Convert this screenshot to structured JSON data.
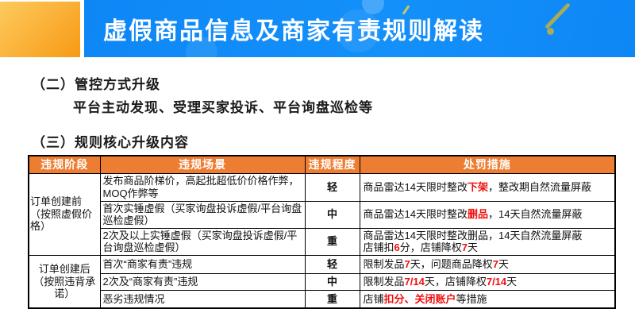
{
  "colors": {
    "banner_blue": "#0d87f5",
    "accent_orange_light": "#fdca5e",
    "accent_orange_dark": "#f79a14",
    "table_header_bg": "#ed7d31",
    "highlight_red": "#f10e0e"
  },
  "header": {
    "title": "虚假商品信息及商家有责规则解读"
  },
  "sections": {
    "s2_heading": "（二）管控方式升级",
    "s2_body": "平台主动发现、受理买家投诉、平台询盘巡检等",
    "s3_heading": "（三）规则核心升级内容"
  },
  "table": {
    "columns": [
      "违规阶段",
      "违规场景",
      "违规程度",
      "处罚措施"
    ],
    "groups": [
      {
        "stage_lines": [
          "订单创建前",
          "（按照虚假价",
          "格）"
        ],
        "rows": [
          {
            "scenario": "发布商品阶梯价，高起批超低价价格作弊，MOQ作弊等",
            "degree": "轻",
            "punishment": [
              {
                "t": "商品雷达14天限时整改"
              },
              {
                "t": "下架",
                "red": true
              },
              {
                "t": "，整改期自然流量屏蔽"
              }
            ]
          },
          {
            "scenario": "首次实锤虚假（买家询盘投诉虚假/平台询盘巡检虚假）",
            "degree": "中",
            "punishment": [
              {
                "t": "商品雷达14天限时整改"
              },
              {
                "t": "删品",
                "red": true
              },
              {
                "t": "，14天自然流量屏蔽"
              }
            ]
          },
          {
            "scenario": "2次及以上实锤虚假（买家询盘投诉虚假/平台询盘巡检虚假）",
            "degree": "重",
            "punishment": [
              {
                "t": "商品雷达14天限时整改删品，14天自然流量屏蔽"
              },
              {
                "br": true
              },
              {
                "t": "店铺扣"
              },
              {
                "t": "6",
                "red": true
              },
              {
                "t": "分，店铺降权"
              },
              {
                "t": "7",
                "red": true
              },
              {
                "t": "天"
              }
            ]
          }
        ]
      },
      {
        "stage_lines": [
          "订单创建后",
          "（按照违背承",
          "诺）"
        ],
        "rows": [
          {
            "scenario": "首次“商家有责”违规",
            "degree": "轻",
            "punishment": [
              {
                "t": "限制发品"
              },
              {
                "t": "7",
                "red": true
              },
              {
                "t": "天，问题商品降权"
              },
              {
                "t": "7",
                "red": true
              },
              {
                "t": "天"
              }
            ]
          },
          {
            "scenario": "2次及“商家有责”违规",
            "degree": "中",
            "punishment": [
              {
                "t": "限制发品"
              },
              {
                "t": "7/14",
                "red": true
              },
              {
                "t": "天，店铺降权"
              },
              {
                "t": "7/14",
                "red": true
              },
              {
                "t": "天"
              }
            ]
          },
          {
            "scenario": "恶劣违规情况",
            "degree": "重",
            "punishment": [
              {
                "t": "店铺"
              },
              {
                "t": "扣分、关闭账户",
                "red": true
              },
              {
                "t": "等措施"
              }
            ]
          }
        ]
      }
    ]
  }
}
